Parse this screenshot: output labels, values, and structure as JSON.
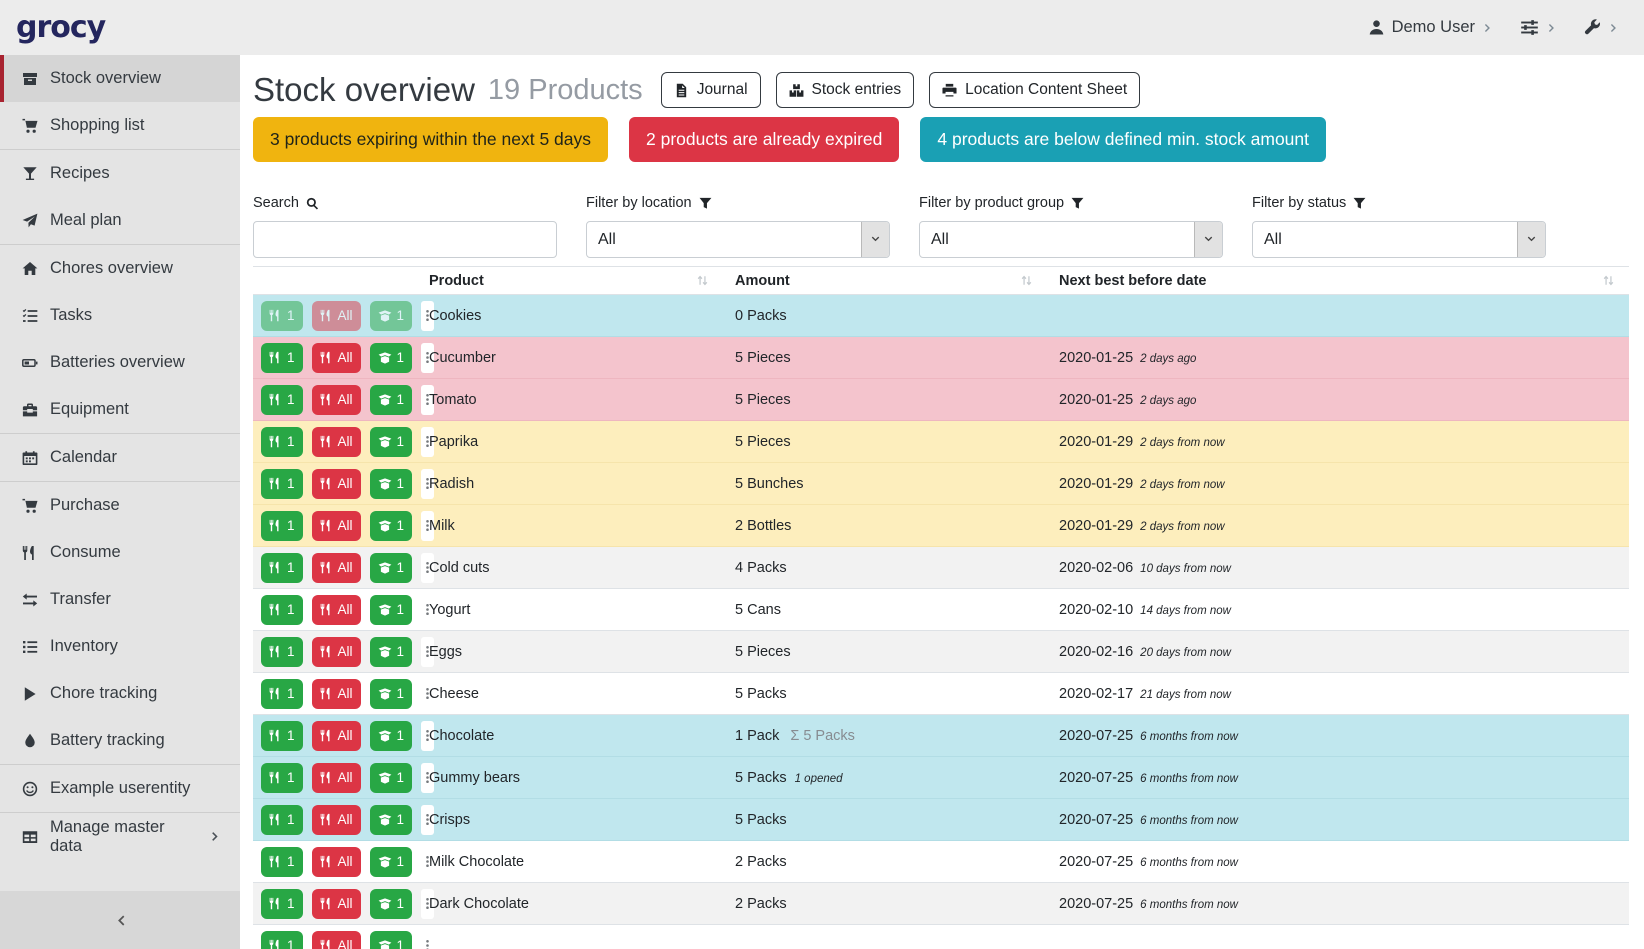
{
  "topbar": {
    "logo": "grocy",
    "user_label": "Demo User",
    "menus": [
      {
        "name": "user-menu",
        "icon": "user-icon"
      },
      {
        "name": "settings-menu",
        "icon": "sliders-icon"
      },
      {
        "name": "admin-menu",
        "icon": "wrench-icon"
      }
    ]
  },
  "sidebar": {
    "items": [
      {
        "label": "Stock overview",
        "icon": "package-icon",
        "active": true
      },
      {
        "label": "Shopping list",
        "icon": "cart-icon",
        "divider_after": true
      },
      {
        "label": "Recipes",
        "icon": "cocktail-icon"
      },
      {
        "label": "Meal plan",
        "icon": "paper-plane-icon",
        "divider_after": true
      },
      {
        "label": "Chores overview",
        "icon": "home-icon"
      },
      {
        "label": "Tasks",
        "icon": "tasks-icon"
      },
      {
        "label": "Batteries overview",
        "icon": "battery-icon"
      },
      {
        "label": "Equipment",
        "icon": "toolbox-icon",
        "divider_after": true
      },
      {
        "label": "Calendar",
        "icon": "calendar-icon",
        "divider_after": true
      },
      {
        "label": "Purchase",
        "icon": "cart-icon"
      },
      {
        "label": "Consume",
        "icon": "utensils-icon"
      },
      {
        "label": "Transfer",
        "icon": "exchange-icon"
      },
      {
        "label": "Inventory",
        "icon": "list-icon"
      },
      {
        "label": "Chore tracking",
        "icon": "play-icon"
      },
      {
        "label": "Battery tracking",
        "icon": "droplet-icon",
        "divider_after": true
      },
      {
        "label": "Example userentity",
        "icon": "smiley-icon",
        "divider_after": true
      },
      {
        "label": "Manage master data",
        "icon": "table-icon",
        "chevron": true
      }
    ],
    "collapse_icon": "chevron-left-icon"
  },
  "header": {
    "title": "Stock overview",
    "subtitle": "19 Products",
    "buttons": [
      {
        "name": "journal-button",
        "label": "Journal",
        "icon": "file-icon"
      },
      {
        "name": "stock-entries-button",
        "label": "Stock entries",
        "icon": "boxes-icon"
      },
      {
        "name": "location-content-sheet-button",
        "label": "Location Content Sheet",
        "icon": "print-icon"
      }
    ],
    "pills": [
      {
        "name": "expiring-products-pill",
        "label": "3 products expiring within the next 5 days",
        "bg": "#f0b40f",
        "text": "#212519"
      },
      {
        "name": "expired-products-pill",
        "label": "2 products are already expired",
        "bg": "#dc3545",
        "text": "#ffffff"
      },
      {
        "name": "below-min-stock-pill",
        "label": "4 products are below defined min. stock amount",
        "bg": "#1aa0b4",
        "text": "#ffffff"
      }
    ]
  },
  "filters": {
    "search": {
      "label": "Search",
      "icon": "search-icon",
      "value": ""
    },
    "selects": [
      {
        "name": "location-filter-select",
        "label": "Filter by location",
        "icon": "filter-icon",
        "value": "All"
      },
      {
        "name": "product-group-filter-select",
        "label": "Filter by product group",
        "icon": "filter-icon",
        "value": "All"
      },
      {
        "name": "status-filter-select",
        "label": "Filter by status",
        "icon": "filter-icon",
        "value": "All"
      }
    ]
  },
  "table": {
    "columns": [
      "Product",
      "Amount",
      "Next best before date"
    ],
    "row_actions": {
      "consume_one_label": "1",
      "consume_all_label": "All",
      "open_one_label": "1"
    },
    "rows": [
      {
        "product": "Cookies",
        "amount": "0 Packs",
        "date": "",
        "timeago": "",
        "highlight": "info",
        "disabled": true
      },
      {
        "product": "Cucumber",
        "amount": "5 Pieces",
        "date": "2020-01-25",
        "timeago": "2 days ago",
        "highlight": "danger"
      },
      {
        "product": "Tomato",
        "amount": "5 Pieces",
        "date": "2020-01-25",
        "timeago": "2 days ago",
        "highlight": "danger"
      },
      {
        "product": "Paprika",
        "amount": "5 Pieces",
        "date": "2020-01-29",
        "timeago": "2 days from now",
        "highlight": "warning"
      },
      {
        "product": "Radish",
        "amount": "5 Bunches",
        "date": "2020-01-29",
        "timeago": "2 days from now",
        "highlight": "warning"
      },
      {
        "product": "Milk",
        "amount": "2 Bottles",
        "date": "2020-01-29",
        "timeago": "2 days from now",
        "highlight": "warning"
      },
      {
        "product": "Cold cuts",
        "amount": "4 Packs",
        "date": "2020-02-06",
        "timeago": "10 days from now",
        "highlight": ""
      },
      {
        "product": "Yogurt",
        "amount": "5 Cans",
        "date": "2020-02-10",
        "timeago": "14 days from now",
        "highlight": ""
      },
      {
        "product": "Eggs",
        "amount": "5 Pieces",
        "date": "2020-02-16",
        "timeago": "20 days from now",
        "highlight": ""
      },
      {
        "product": "Cheese",
        "amount": "5 Packs",
        "date": "2020-02-17",
        "timeago": "21 days from now",
        "highlight": ""
      },
      {
        "product": "Chocolate",
        "amount": "1 Pack",
        "amount_sum": "Σ 5 Packs",
        "date": "2020-07-25",
        "timeago": "6 months from now",
        "highlight": "info"
      },
      {
        "product": "Gummy bears",
        "amount": "5 Packs",
        "amount_note": "1 opened",
        "date": "2020-07-25",
        "timeago": "6 months from now",
        "highlight": "info"
      },
      {
        "product": "Crisps",
        "amount": "5 Packs",
        "date": "2020-07-25",
        "timeago": "6 months from now",
        "highlight": "info"
      },
      {
        "product": "Milk Chocolate",
        "amount": "2 Packs",
        "date": "2020-07-25",
        "timeago": "6 months from now",
        "highlight": ""
      },
      {
        "product": "Dark Chocolate",
        "amount": "2 Packs",
        "date": "2020-07-25",
        "timeago": "6 months from now",
        "highlight": ""
      },
      {
        "product": "",
        "amount": "",
        "date": "",
        "timeago": "",
        "highlight": "",
        "partial": true
      }
    ]
  },
  "colors": {
    "logo": "#24265e",
    "topbar_bg": "#ececec",
    "sidebar_bg": "#e4e4e4",
    "sidebar_active_bg": "#d5d5d5",
    "sidebar_active_accent": "#a82330",
    "action_green": "#28a745",
    "action_red": "#dc3545",
    "pill_yellow": "#f0b40f",
    "pill_red": "#dc3545",
    "pill_teal": "#1aa0b4",
    "row_info_blue": "#c0e7ee",
    "row_danger_pink": "#f4c4cd",
    "row_warning_yellow": "#fdeebd",
    "row_stripe_gray": "#f2f2f2"
  }
}
